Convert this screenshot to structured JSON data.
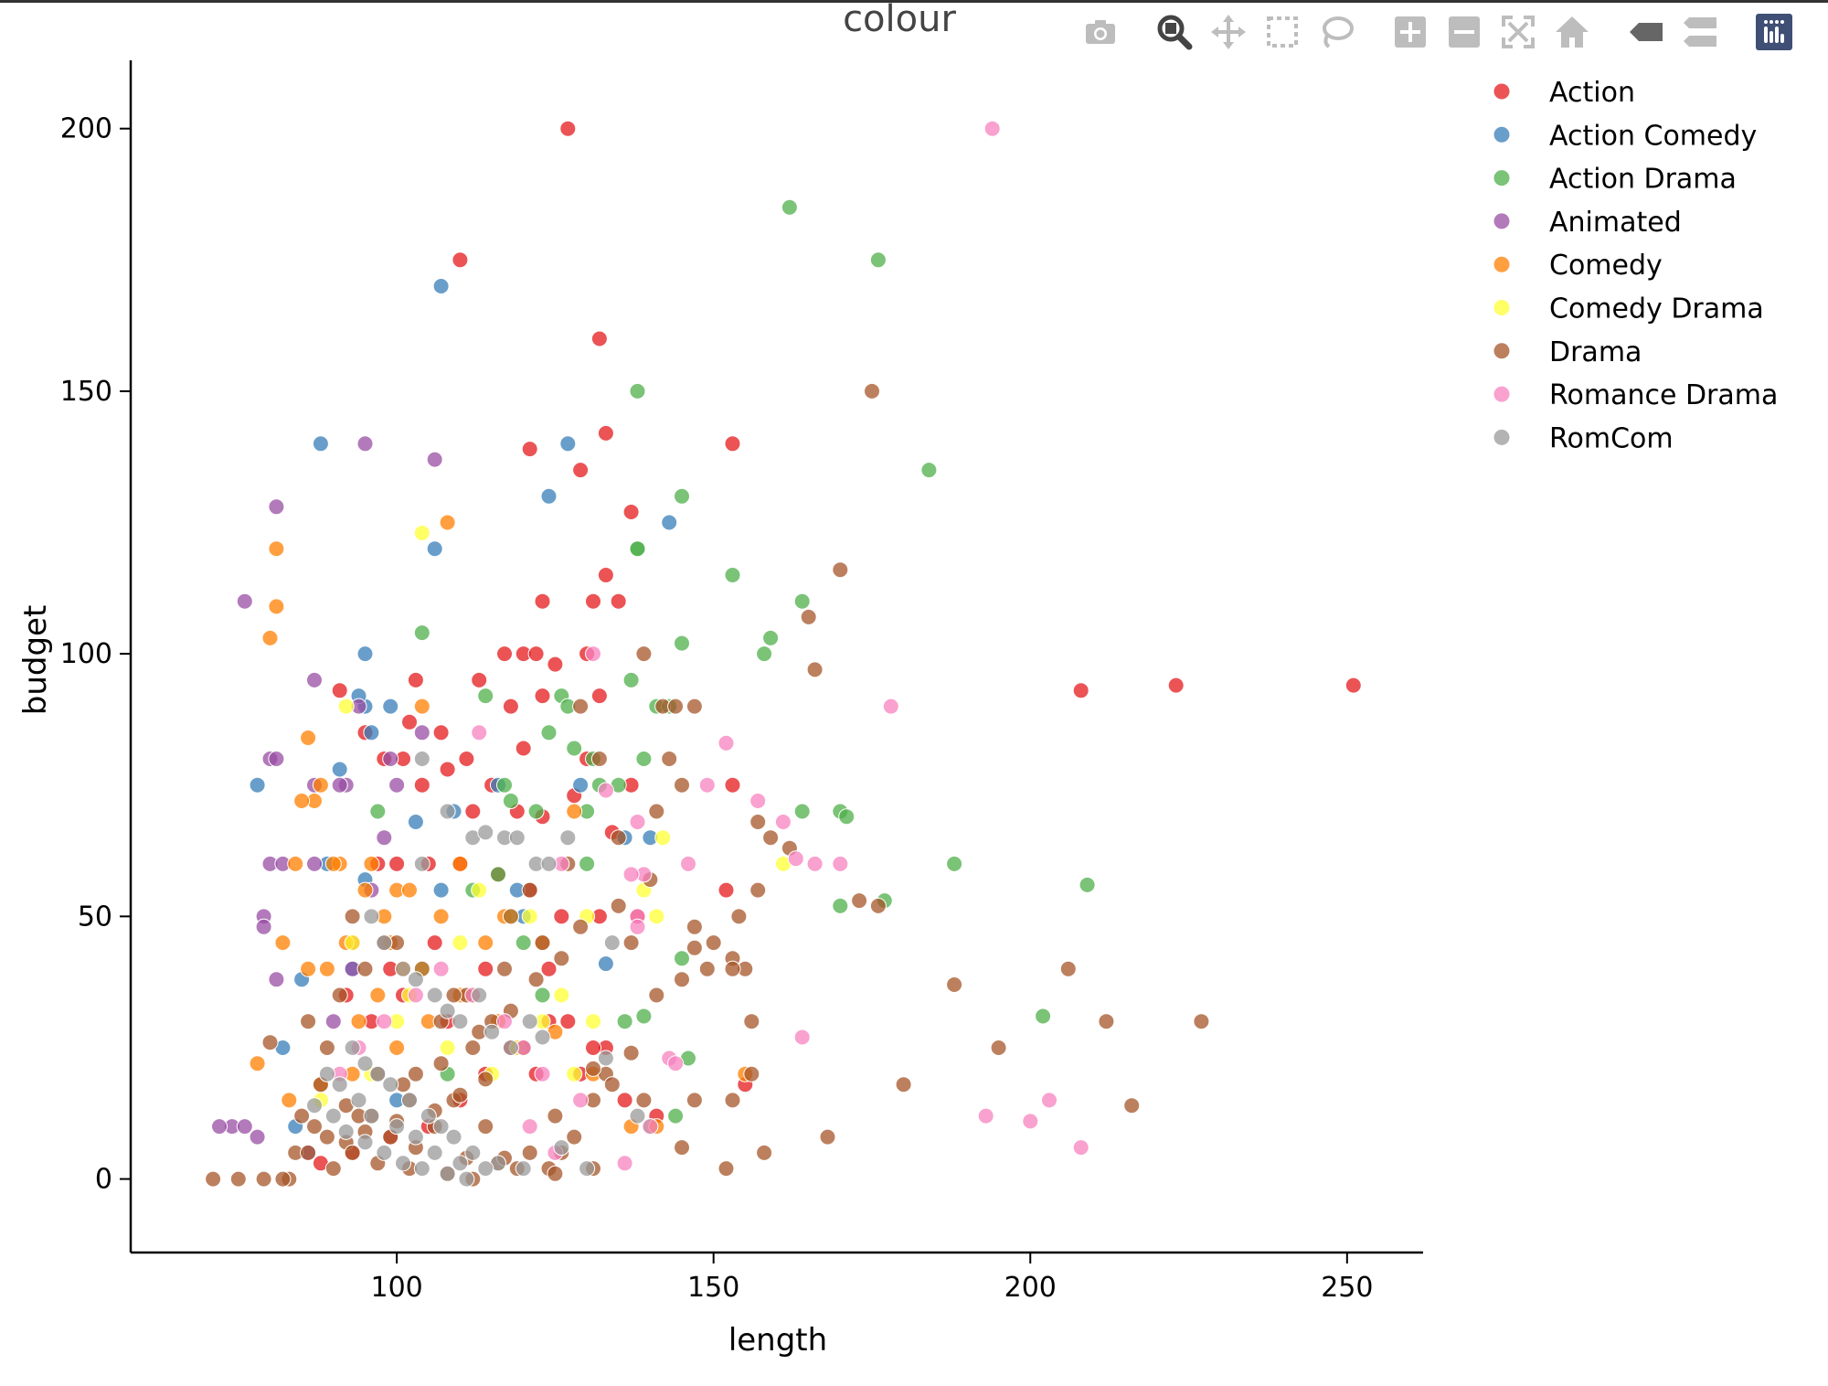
{
  "chart_data": {
    "type": "scatter",
    "title": "",
    "xlabel": "length",
    "ylabel": "budget",
    "xlim": [
      58,
      262
    ],
    "ylim": [
      -14,
      213
    ],
    "xticks": [
      100,
      150,
      200,
      250
    ],
    "yticks": [
      0,
      50,
      100,
      150,
      200
    ],
    "grid": false,
    "legend_title": "colour",
    "legend_position": "top-right",
    "series": [
      {
        "name": "Action",
        "color": "#e41a1c",
        "x": [
          127,
          110,
          132,
          133,
          153,
          121,
          129,
          137,
          133,
          131,
          135,
          123,
          130,
          117,
          120,
          122,
          125,
          113,
          132,
          123,
          103,
          130,
          118,
          111,
          107,
          102,
          101,
          98,
          95,
          91,
          120,
          115,
          128,
          137,
          104,
          108,
          112,
          119,
          123,
          134,
          100,
          97,
          105,
          110,
          116,
          121,
          126,
          132,
          138,
          92,
          96,
          101,
          108,
          118,
          122,
          129,
          136,
          141,
          93,
          99,
          106,
          114,
          124,
          133,
          152,
          153,
          155,
          208,
          223,
          251,
          127,
          119,
          114,
          110,
          105,
          99,
          93,
          88,
          131,
          124
        ],
        "y": [
          200,
          175,
          160,
          142,
          140,
          139,
          135,
          127,
          115,
          110,
          110,
          110,
          100,
          100,
          100,
          100,
          98,
          95,
          92,
          92,
          95,
          80,
          90,
          80,
          85,
          87,
          80,
          80,
          85,
          93,
          82,
          75,
          73,
          75,
          75,
          78,
          70,
          70,
          69,
          66,
          60,
          60,
          60,
          60,
          58,
          55,
          50,
          50,
          50,
          35,
          30,
          35,
          30,
          25,
          20,
          20,
          15,
          12,
          45,
          40,
          45,
          40,
          30,
          25,
          55,
          75,
          18,
          93,
          94,
          94,
          30,
          25,
          20,
          15,
          10,
          8,
          5,
          3,
          25,
          40
        ]
      },
      {
        "name": "Action Comedy",
        "color": "#377eb8",
        "x": [
          107,
          88,
          95,
          127,
          124,
          106,
          143,
          95,
          94,
          99,
          96,
          78,
          116,
          129,
          140,
          109,
          103,
          107,
          95,
          120,
          119,
          133,
          136,
          91,
          89,
          93,
          85,
          82,
          100,
          84
        ],
        "y": [
          170,
          140,
          100,
          140,
          130,
          120,
          125,
          90,
          92,
          90,
          85,
          75,
          75,
          75,
          65,
          70,
          68,
          55,
          57,
          50,
          55,
          41,
          65,
          78,
          60,
          40,
          38,
          25,
          15,
          10
        ]
      },
      {
        "name": "Action Drama",
        "color": "#4daf4a",
        "x": [
          162,
          176,
          138,
          184,
          145,
          138,
          153,
          164,
          138,
          159,
          145,
          104,
          158,
          126,
          127,
          137,
          141,
          143,
          114,
          131,
          124,
          128,
          135,
          139,
          117,
          118,
          130,
          132,
          122,
          164,
          170,
          171,
          170,
          177,
          188,
          209,
          202,
          139,
          145,
          146,
          144,
          120,
          112,
          130,
          136,
          108,
          97,
          116,
          123,
          140
        ],
        "y": [
          185,
          175,
          150,
          135,
          130,
          120,
          115,
          110,
          120,
          103,
          102,
          104,
          100,
          92,
          90,
          95,
          90,
          90,
          92,
          80,
          85,
          82,
          75,
          80,
          75,
          72,
          70,
          75,
          70,
          70,
          70,
          69,
          52,
          53,
          60,
          56,
          31,
          31,
          42,
          23,
          12,
          45,
          55,
          60,
          30,
          20,
          70,
          58,
          35,
          10
        ]
      },
      {
        "name": "Animated",
        "color": "#984ea3",
        "x": [
          95,
          106,
          81,
          76,
          87,
          94,
          80,
          81,
          87,
          92,
          91,
          99,
          100,
          80,
          82,
          87,
          96,
          79,
          81,
          79,
          90,
          93,
          74,
          72,
          76,
          78,
          86,
          104,
          98
        ],
        "y": [
          140,
          137,
          128,
          110,
          95,
          90,
          80,
          80,
          75,
          75,
          75,
          80,
          75,
          60,
          60,
          60,
          55,
          50,
          38,
          48,
          30,
          40,
          10,
          10,
          10,
          8,
          5,
          85,
          65
        ]
      },
      {
        "name": "Comedy",
        "color": "#ff7f00",
        "x": [
          108,
          81,
          81,
          80,
          104,
          86,
          88,
          87,
          85,
          91,
          84,
          90,
          96,
          110,
          100,
          102,
          95,
          98,
          107,
          114,
          117,
          92,
          99,
          89,
          86,
          82,
          78,
          83,
          88,
          93,
          100,
          105,
          110,
          116,
          120,
          125,
          131,
          141,
          155,
          97,
          94,
          101,
          112,
          123,
          137,
          128
        ],
        "y": [
          125,
          120,
          109,
          103,
          90,
          84,
          75,
          72,
          72,
          60,
          60,
          60,
          60,
          60,
          55,
          55,
          55,
          50,
          50,
          45,
          50,
          45,
          45,
          40,
          40,
          45,
          22,
          15,
          18,
          20,
          25,
          30,
          35,
          30,
          25,
          28,
          20,
          10,
          20,
          35,
          30,
          40,
          35,
          45,
          10,
          70
        ]
      },
      {
        "name": "Comedy Drama",
        "color": "#ffff33",
        "x": [
          104,
          92,
          161,
          142,
          113,
          118,
          121,
          130,
          141,
          139,
          93,
          104,
          126,
          131,
          110,
          123,
          100,
          115,
          108,
          96,
          119,
          88,
          128,
          102
        ],
        "y": [
          123,
          90,
          60,
          65,
          55,
          50,
          50,
          50,
          50,
          55,
          45,
          40,
          35,
          30,
          45,
          30,
          30,
          20,
          25,
          20,
          25,
          15,
          20,
          35
        ]
      },
      {
        "name": "Drama",
        "color": "#a65628",
        "x": [
          175,
          170,
          165,
          166,
          139,
          142,
          147,
          144,
          143,
          145,
          157,
          159,
          162,
          157,
          154,
          173,
          176,
          153,
          155,
          147,
          149,
          147,
          141,
          145,
          140,
          137,
          156,
          156,
          153,
          150,
          147,
          188,
          206,
          212,
          227,
          195,
          180,
          168,
          152,
          158,
          145,
          153,
          216,
          129,
          132,
          141,
          135,
          127,
          121,
          118,
          123,
          117,
          111,
          107,
          112,
          103,
          109,
          114,
          126,
          131,
          100,
          95,
          91,
          86,
          89,
          97,
          102,
          106,
          121,
          124,
          128,
          93,
          98,
          104,
          109,
          115,
          120,
          133,
          139,
          87,
          84,
          90,
          96,
          101,
          107,
          113,
          118,
          122,
          126,
          129,
          135,
          88,
          92,
          94,
          99,
          103,
          111,
          116,
          119,
          125,
          83,
          86,
          92,
          95,
          100,
          106,
          110,
          114,
          131,
          137,
          80,
          85,
          89,
          93,
          97,
          102,
          108,
          112,
          117,
          71,
          75,
          79,
          82,
          125,
          131,
          134
        ],
        "y": [
          150,
          116,
          107,
          97,
          100,
          90,
          90,
          90,
          80,
          75,
          68,
          65,
          63,
          55,
          50,
          53,
          52,
          42,
          40,
          48,
          40,
          44,
          35,
          38,
          57,
          45,
          30,
          20,
          40,
          45,
          15,
          37,
          40,
          30,
          30,
          25,
          18,
          8,
          2,
          5,
          6,
          15,
          14,
          90,
          80,
          70,
          65,
          60,
          55,
          50,
          45,
          40,
          35,
          30,
          25,
          20,
          15,
          10,
          5,
          2,
          45,
          40,
          35,
          30,
          25,
          20,
          15,
          10,
          5,
          2,
          8,
          50,
          45,
          40,
          35,
          30,
          25,
          20,
          15,
          10,
          5,
          2,
          12,
          18,
          22,
          28,
          32,
          38,
          42,
          48,
          52,
          18,
          14,
          12,
          8,
          6,
          4,
          3,
          2,
          1,
          0,
          5,
          7,
          9,
          11,
          13,
          16,
          19,
          21,
          24,
          26,
          12,
          8,
          5,
          3,
          2,
          1,
          0,
          4,
          0,
          0,
          0,
          0,
          12,
          15,
          18
        ]
      },
      {
        "name": "Romance Drama",
        "color": "#f781bf",
        "x": [
          194,
          178,
          152,
          157,
          149,
          161,
          166,
          163,
          138,
          146,
          139,
          170,
          138,
          137,
          133,
          113,
          131,
          126,
          143,
          144,
          164,
          193,
          203,
          200,
          208,
          140,
          129,
          123,
          120,
          117,
          112,
          107,
          103,
          98,
          94,
          91,
          121,
          125,
          136,
          138
        ],
        "y": [
          200,
          90,
          83,
          72,
          75,
          68,
          60,
          61,
          68,
          60,
          58,
          60,
          50,
          58,
          74,
          85,
          100,
          60,
          23,
          22,
          27,
          12,
          15,
          11,
          6,
          10,
          15,
          20,
          25,
          30,
          35,
          40,
          35,
          30,
          25,
          20,
          10,
          5,
          3,
          48
        ]
      },
      {
        "name": "RomCom",
        "color": "#999999",
        "x": [
          104,
          108,
          104,
          112,
          114,
          117,
          119,
          122,
          124,
          127,
          96,
          98,
          101,
          103,
          106,
          108,
          110,
          113,
          115,
          118,
          121,
          123,
          93,
          95,
          97,
          99,
          102,
          105,
          107,
          109,
          112,
          116,
          120,
          89,
          91,
          94,
          96,
          100,
          103,
          106,
          110,
          114,
          87,
          90,
          92,
          95,
          98,
          101,
          104,
          108,
          111,
          134,
          138,
          133,
          126,
          130
        ],
        "y": [
          80,
          70,
          60,
          65,
          66,
          65,
          65,
          60,
          60,
          65,
          50,
          45,
          40,
          38,
          35,
          32,
          30,
          35,
          28,
          25,
          30,
          27,
          25,
          22,
          20,
          18,
          15,
          12,
          10,
          8,
          5,
          3,
          2,
          20,
          18,
          15,
          12,
          10,
          8,
          5,
          3,
          2,
          14,
          12,
          9,
          7,
          5,
          3,
          2,
          1,
          0,
          45,
          12,
          23,
          6,
          2
        ]
      }
    ]
  },
  "modebar": {
    "icons": [
      "camera-icon",
      "zoom-icon",
      "pan-icon",
      "box-select-icon",
      "lasso-select-icon",
      "zoom-in-icon",
      "zoom-out-icon",
      "autoscale-icon",
      "reset-axes-icon",
      "hover-closest-icon",
      "hover-compare-icon",
      "plotly-logo-icon"
    ]
  }
}
